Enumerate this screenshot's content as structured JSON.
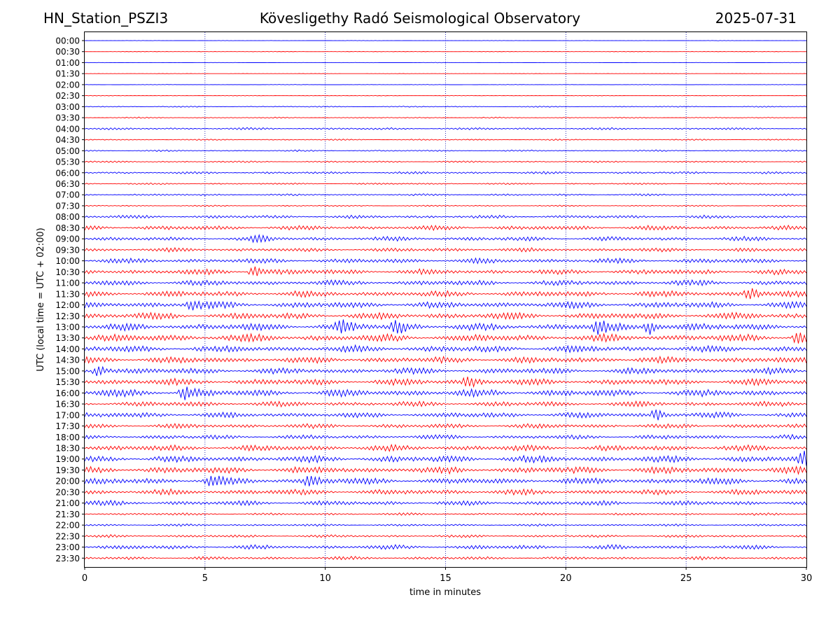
{
  "header": {
    "station": "HN_Station_PSZI3",
    "observatory": "Kövesligethy Radó Seismological Observatory",
    "date": "2025-07-31"
  },
  "colors": {
    "even_hour_trace": "#0000ff",
    "half_hour_trace": "#ff0000",
    "grid": "#0000aa"
  },
  "chart_data": {
    "type": "line",
    "title": "Kövesligethy Radó Seismological Observatory",
    "xlabel": "time in minutes",
    "ylabel": "UTC (local time = UTC + 02:00)",
    "xlim": [
      0,
      30
    ],
    "xticks": [
      0,
      5,
      10,
      15,
      20,
      25,
      30
    ],
    "vertical_grid": true,
    "row_labels": [
      "00:00",
      "00:30",
      "01:00",
      "01:30",
      "02:00",
      "02:30",
      "03:00",
      "03:30",
      "04:00",
      "04:30",
      "05:00",
      "05:30",
      "06:00",
      "06:30",
      "07:00",
      "07:30",
      "08:00",
      "08:30",
      "09:00",
      "09:30",
      "10:00",
      "10:30",
      "11:00",
      "11:30",
      "12:00",
      "12:30",
      "13:00",
      "13:30",
      "14:00",
      "14:30",
      "15:00",
      "15:30",
      "16:00",
      "16:30",
      "17:00",
      "17:30",
      "18:00",
      "18:30",
      "19:00",
      "19:30",
      "20:00",
      "20:30",
      "21:00",
      "21:30",
      "22:00",
      "22:30",
      "23:00",
      "23:30"
    ],
    "relative_noise_level": [
      0.03,
      0.05,
      0.04,
      0.03,
      0.04,
      0.05,
      0.1,
      0.1,
      0.2,
      0.12,
      0.14,
      0.15,
      0.22,
      0.15,
      0.18,
      0.12,
      0.3,
      0.42,
      0.4,
      0.36,
      0.45,
      0.5,
      0.5,
      0.56,
      0.6,
      0.62,
      0.66,
      0.7,
      0.62,
      0.6,
      0.56,
      0.6,
      0.66,
      0.48,
      0.5,
      0.42,
      0.4,
      0.55,
      0.62,
      0.65,
      0.6,
      0.52,
      0.45,
      0.22,
      0.2,
      0.25,
      0.4,
      0.3
    ],
    "events": [
      {
        "row": 18,
        "t": 7.1,
        "amp": 0.6
      },
      {
        "row": 21,
        "t": 7.1,
        "amp": 0.9
      },
      {
        "row": 23,
        "t": 27.7,
        "amp": 0.9
      },
      {
        "row": 24,
        "t": 4.5,
        "amp": 0.9
      },
      {
        "row": 26,
        "t": 13.0,
        "amp": 1.2
      },
      {
        "row": 26,
        "t": 10.7,
        "amp": 0.8
      },
      {
        "row": 26,
        "t": 21.4,
        "amp": 1.1
      },
      {
        "row": 26,
        "t": 23.5,
        "amp": 1.2
      },
      {
        "row": 27,
        "t": 29.7,
        "amp": 1.0
      },
      {
        "row": 30,
        "t": 0.6,
        "amp": 1.0
      },
      {
        "row": 31,
        "t": 16.0,
        "amp": 0.9
      },
      {
        "row": 32,
        "t": 4.2,
        "amp": 1.0
      },
      {
        "row": 34,
        "t": 23.8,
        "amp": 0.9
      },
      {
        "row": 38,
        "t": 29.9,
        "amp": 1.0
      },
      {
        "row": 40,
        "t": 9.4,
        "amp": 1.2
      },
      {
        "row": 40,
        "t": 5.3,
        "amp": 0.9
      }
    ]
  }
}
